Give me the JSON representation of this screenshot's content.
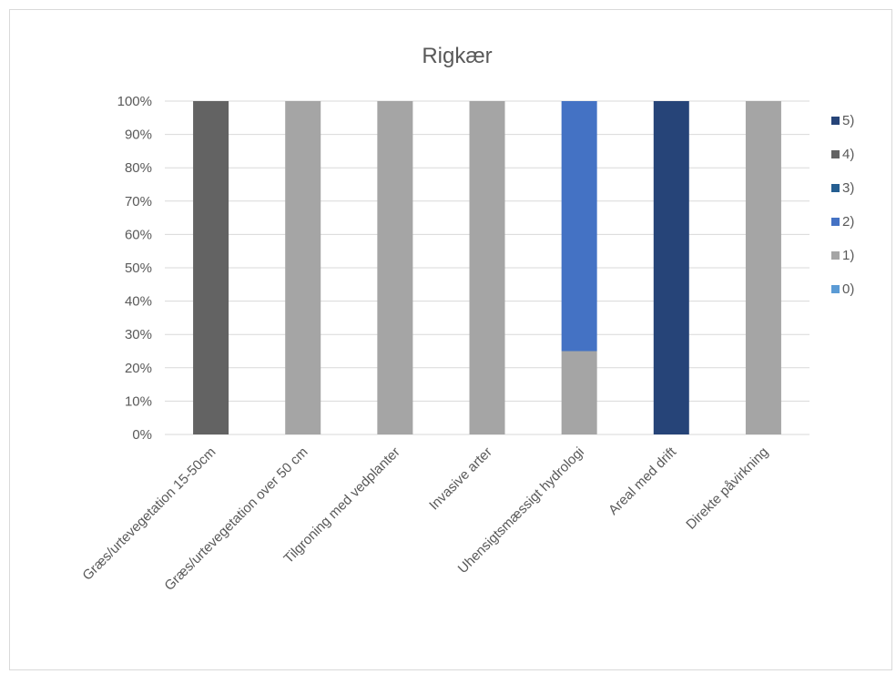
{
  "chart_data": {
    "type": "bar",
    "stacked": true,
    "percent_stacked": true,
    "title": "Rigkær",
    "xlabel": "",
    "ylabel": "",
    "ylim": [
      0,
      100
    ],
    "y_ticks": [
      "0%",
      "10%",
      "20%",
      "30%",
      "40%",
      "50%",
      "60%",
      "70%",
      "80%",
      "90%",
      "100%"
    ],
    "grid": true,
    "legend_position": "right",
    "categories": [
      "Græs/urtevegetation 15-50cm",
      "Græs/urtevegetation over 50 cm",
      "Tilgroning med vedplanter",
      "Invasive arter",
      "Uhensigtsmæssigt hydrologi",
      "Areal med drift",
      "Direkte påvirkning"
    ],
    "series": [
      {
        "name": "0)",
        "color": "#5b9bd5",
        "values": [
          0,
          0,
          0,
          0,
          0,
          0,
          0
        ]
      },
      {
        "name": "1)",
        "color": "#a5a5a5",
        "values": [
          0,
          100,
          100,
          100,
          25,
          0,
          100
        ]
      },
      {
        "name": "2)",
        "color": "#4472c4",
        "values": [
          0,
          0,
          0,
          0,
          75,
          0,
          0
        ]
      },
      {
        "name": "3)",
        "color": "#255e91",
        "values": [
          0,
          0,
          0,
          0,
          0,
          0,
          0
        ]
      },
      {
        "name": "4)",
        "color": "#636363",
        "values": [
          100,
          0,
          0,
          0,
          0,
          0,
          0
        ]
      },
      {
        "name": "5)",
        "color": "#264478",
        "values": [
          0,
          0,
          0,
          0,
          0,
          100,
          0
        ]
      }
    ]
  }
}
